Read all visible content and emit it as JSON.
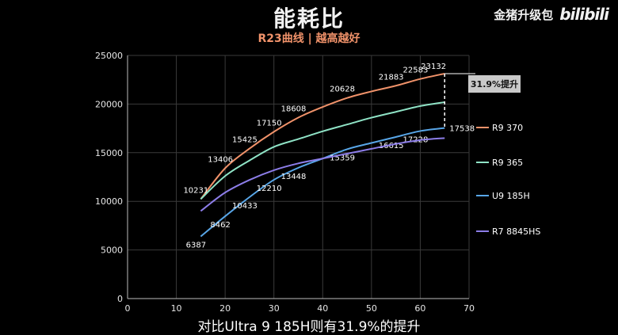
{
  "header": {
    "title": "能耗比",
    "subtitle": "R23曲线 | 越高越好",
    "brand_text": "金猪升级包",
    "brand_logo": "bilibili"
  },
  "caption": "对比Ultra 9 185H则有31.9%的提升",
  "annotation": "31.9%提升",
  "colors": {
    "R9 370": "#f0926a",
    "R9 365": "#8fe3c6",
    "U9 185H": "#58a6e8",
    "R7 8845HS": "#8c7de8"
  },
  "chart_data": {
    "type": "line",
    "title": "能耗比",
    "subtitle": "R23曲线 | 越高越好",
    "xlim": [
      0,
      70
    ],
    "ylim": [
      0,
      25000
    ],
    "x_ticks": [
      0,
      10,
      20,
      30,
      40,
      50,
      60,
      70
    ],
    "y_ticks": [
      0,
      5000,
      10000,
      15000,
      20000,
      25000
    ],
    "grid": true,
    "legend": "right",
    "series": [
      {
        "name": "R9 370",
        "x": [
          15,
          20,
          25,
          30,
          35,
          40,
          45,
          50,
          55,
          60,
          65
        ],
        "y": [
          10231,
          13406,
          15425,
          17150,
          18608,
          19700,
          20628,
          21300,
          21883,
          22583,
          23132
        ],
        "labels": [
          {
            "x": 15,
            "y": 10231,
            "text": "10231"
          },
          {
            "x": 20,
            "y": 13406,
            "text": "13406"
          },
          {
            "x": 25,
            "y": 15425,
            "text": "15425"
          },
          {
            "x": 30,
            "y": 17150,
            "text": "17150"
          },
          {
            "x": 35,
            "y": 18608,
            "text": "18608"
          },
          {
            "x": 45,
            "y": 20628,
            "text": "20628"
          },
          {
            "x": 55,
            "y": 21883,
            "text": "21883"
          },
          {
            "x": 60,
            "y": 22583,
            "text": "22583"
          },
          {
            "x": 65,
            "y": 23132,
            "text": "23132"
          }
        ]
      },
      {
        "name": "R9 365",
        "x": [
          15,
          20,
          25,
          30,
          35,
          40,
          45,
          50,
          55,
          60,
          65
        ],
        "y": [
          10231,
          12600,
          14200,
          15600,
          16400,
          17200,
          17900,
          18600,
          19200,
          19800,
          20200
        ],
        "labels": []
      },
      {
        "name": "U9 185H",
        "x": [
          15,
          20,
          25,
          30,
          35,
          40,
          45,
          50,
          55,
          60,
          65
        ],
        "y": [
          6387,
          8462,
          10433,
          12210,
          13448,
          14400,
          15359,
          16000,
          16615,
          17228,
          17538
        ],
        "labels": [
          {
            "x": 15,
            "y": 6387,
            "text": "6387"
          },
          {
            "x": 20,
            "y": 8462,
            "text": "8462"
          },
          {
            "x": 25,
            "y": 10433,
            "text": "10433"
          },
          {
            "x": 30,
            "y": 12210,
            "text": "12210"
          },
          {
            "x": 35,
            "y": 13448,
            "text": "13448"
          },
          {
            "x": 45,
            "y": 15359,
            "text": "15359"
          },
          {
            "x": 55,
            "y": 16615,
            "text": "16615"
          },
          {
            "x": 60,
            "y": 17228,
            "text": "17228"
          },
          {
            "x": 65,
            "y": 17538,
            "text": "17538"
          }
        ]
      },
      {
        "name": "R7 8845HS",
        "x": [
          15,
          20,
          25,
          30,
          35,
          40,
          45,
          50,
          55,
          60,
          65
        ],
        "y": [
          9000,
          10900,
          12200,
          13200,
          13900,
          14400,
          14900,
          15400,
          15900,
          16300,
          16500
        ],
        "labels": []
      }
    ]
  }
}
